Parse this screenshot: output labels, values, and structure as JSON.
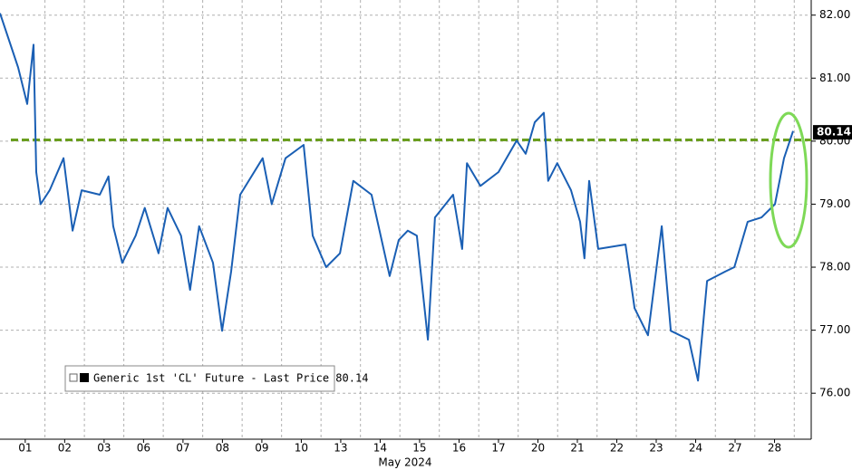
{
  "chart_data": {
    "type": "line",
    "x_label": "May 2024",
    "xlim": [
      -0.64,
      19.93
    ],
    "xticks": [
      {
        "value": 0,
        "label": "01"
      },
      {
        "value": 1,
        "label": "02"
      },
      {
        "value": 2,
        "label": "03"
      },
      {
        "value": 3,
        "label": "06"
      },
      {
        "value": 4,
        "label": "07"
      },
      {
        "value": 5,
        "label": "08"
      },
      {
        "value": 6,
        "label": "09"
      },
      {
        "value": 7,
        "label": "10"
      },
      {
        "value": 8,
        "label": "13"
      },
      {
        "value": 9,
        "label": "14"
      },
      {
        "value": 10,
        "label": "15"
      },
      {
        "value": 11,
        "label": "16"
      },
      {
        "value": 12,
        "label": "17"
      },
      {
        "value": 13,
        "label": "20"
      },
      {
        "value": 14,
        "label": "21"
      },
      {
        "value": 15,
        "label": "22"
      },
      {
        "value": 16,
        "label": "23"
      },
      {
        "value": 17,
        "label": "24"
      },
      {
        "value": 18,
        "label": "27"
      },
      {
        "value": 19,
        "label": "28"
      }
    ],
    "ylim": [
      75.27,
      82.24
    ],
    "yticks": [
      {
        "value": 76,
        "label": "76.00"
      },
      {
        "value": 77,
        "label": "77.00"
      },
      {
        "value": 78,
        "label": "78.00"
      },
      {
        "value": 79,
        "label": "79.00"
      },
      {
        "value": 80,
        "label": "80.00"
      },
      {
        "value": 81,
        "label": "81.00"
      },
      {
        "value": 82,
        "label": "82.00"
      }
    ],
    "grid": true,
    "reference_line": {
      "value": 80.02,
      "color": "#6a9e1f"
    },
    "last_value": 80.14,
    "series": [
      {
        "name": "Generic 1st 'CL' Future - Last Price 80.14",
        "color": "#1a5fb4",
        "x": [
          -0.64,
          -0.41,
          -0.18,
          0.05,
          0.21,
          0.28,
          0.39,
          0.62,
          0.97,
          1.2,
          1.43,
          1.89,
          2.11,
          2.23,
          2.46,
          2.8,
          3.03,
          3.38,
          3.61,
          3.95,
          4.18,
          4.41,
          4.76,
          4.99,
          5.22,
          5.45,
          6.02,
          6.25,
          6.6,
          7.06,
          7.29,
          7.63,
          7.98,
          8.32,
          8.78,
          9.24,
          9.47,
          9.7,
          9.93,
          10.21,
          10.39,
          10.85,
          11.08,
          11.2,
          11.54,
          12.0,
          12.46,
          12.69,
          12.92,
          13.15,
          13.26,
          13.49,
          13.84,
          14.07,
          14.18,
          14.3,
          14.53,
          15.22,
          15.45,
          15.79,
          16.14,
          16.37,
          16.83,
          17.06,
          17.29,
          17.75,
          17.98,
          18.32,
          18.67,
          19.01,
          19.24,
          19.47
        ],
        "values": [
          82.03,
          81.6,
          81.17,
          80.59,
          81.53,
          79.51,
          79.0,
          79.22,
          79.73,
          78.58,
          79.22,
          79.15,
          79.44,
          78.65,
          78.07,
          78.5,
          78.94,
          78.22,
          78.94,
          78.5,
          77.64,
          78.65,
          78.07,
          76.99,
          77.93,
          79.15,
          79.73,
          79.0,
          79.73,
          79.94,
          78.5,
          78.0,
          78.22,
          79.37,
          79.15,
          77.86,
          78.43,
          78.58,
          78.5,
          76.85,
          78.79,
          79.15,
          78.29,
          79.65,
          79.29,
          79.51,
          80.01,
          79.8,
          80.3,
          80.45,
          79.37,
          79.65,
          79.22,
          78.72,
          78.14,
          79.37,
          78.29,
          78.36,
          77.35,
          76.92,
          78.65,
          76.99,
          76.85,
          76.2,
          77.78,
          77.93,
          78.0,
          78.72,
          78.79,
          79.0,
          79.73,
          80.16
        ]
      }
    ]
  }
}
